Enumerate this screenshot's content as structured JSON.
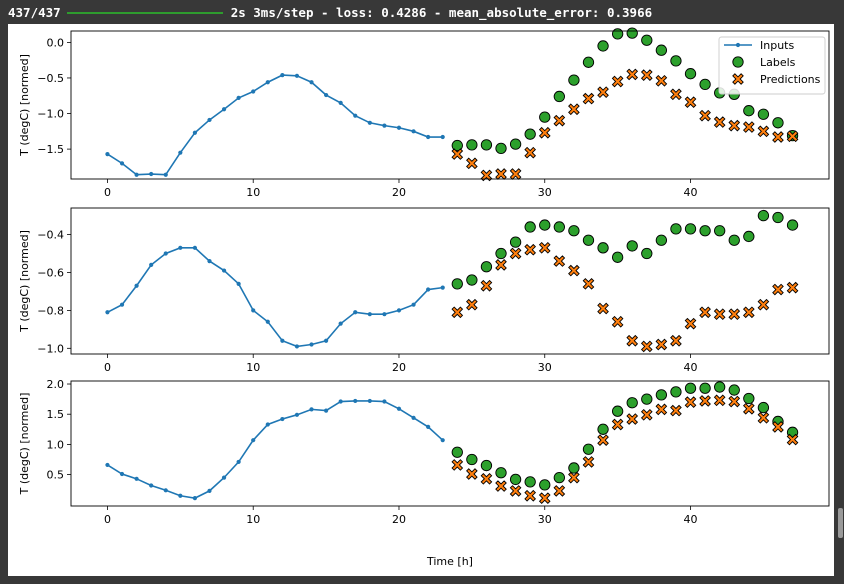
{
  "console": {
    "progress_text": "437/437",
    "progress_fraction": 1.0,
    "status_text": "2s 3ms/step - loss: 0.4286 - mean_absolute_error: 0.3966"
  },
  "colors": {
    "inputs": "#1f77b4",
    "labels": "#2ca02c",
    "predictions": "#ff7f0e",
    "background": "#383838",
    "progress_bar": "#2e9c2e"
  },
  "chart_data": {
    "type": "multi-panel line+scatter",
    "xlabel": "Time [h]",
    "xlim": [
      -2.5,
      49.5
    ],
    "xticks": [
      0,
      10,
      20,
      30,
      40
    ],
    "legend": {
      "placement": "top-right of first panel",
      "entries": [
        "Inputs",
        "Labels",
        "Predictions"
      ]
    },
    "panels": [
      {
        "ylabel": "T (degC) [normed]",
        "ylim": [
          -1.92,
          0.16
        ],
        "yticks": [
          0.0,
          -0.5,
          -1.0,
          -1.5
        ],
        "ytick_labels": [
          "0.0",
          "−0.5",
          "−1.0",
          "−1.5"
        ],
        "inputs": {
          "x": [
            0,
            1,
            2,
            3,
            4,
            5,
            6,
            7,
            8,
            9,
            10,
            11,
            12,
            13,
            14,
            15,
            16,
            17,
            18,
            19,
            20,
            21,
            22,
            23
          ],
          "y": [
            -1.57,
            -1.7,
            -1.86,
            -1.85,
            -1.86,
            -1.55,
            -1.27,
            -1.09,
            -0.94,
            -0.78,
            -0.69,
            -0.56,
            -0.46,
            -0.47,
            -0.56,
            -0.74,
            -0.85,
            -1.03,
            -1.13,
            -1.17,
            -1.2,
            -1.25,
            -1.33,
            -1.33
          ]
        },
        "labels": {
          "x": [
            24,
            25,
            26,
            27,
            28,
            29,
            30,
            31,
            32,
            33,
            34,
            35,
            36,
            37,
            38,
            39,
            40,
            41,
            42,
            43,
            44,
            45,
            46,
            47
          ],
          "y": [
            -1.45,
            -1.44,
            -1.44,
            -1.49,
            -1.43,
            -1.29,
            -1.05,
            -0.76,
            -0.53,
            -0.28,
            -0.05,
            0.12,
            0.13,
            0.03,
            -0.11,
            -0.26,
            -0.44,
            -0.59,
            -0.71,
            -0.73,
            -0.96,
            -1.01,
            -1.13,
            -1.31
          ]
        },
        "predictions": {
          "x": [
            24,
            25,
            26,
            27,
            28,
            29,
            30,
            31,
            32,
            33,
            34,
            35,
            36,
            37,
            38,
            39,
            40,
            41,
            42,
            43,
            44,
            45,
            46,
            47
          ],
          "y": [
            -1.57,
            -1.7,
            -1.87,
            -1.85,
            -1.85,
            -1.55,
            -1.27,
            -1.1,
            -0.94,
            -0.79,
            -0.7,
            -0.55,
            -0.45,
            -0.46,
            -0.54,
            -0.73,
            -0.84,
            -1.03,
            -1.12,
            -1.17,
            -1.19,
            -1.25,
            -1.33,
            -1.32
          ]
        }
      },
      {
        "ylabel": "T (degC) [normed]",
        "ylim": [
          -1.03,
          -0.26
        ],
        "yticks": [
          -0.4,
          -0.6,
          -0.8,
          -1.0
        ],
        "ytick_labels": [
          "−0.4",
          "−0.6",
          "−0.8",
          "−1.0"
        ],
        "inputs": {
          "x": [
            0,
            1,
            2,
            3,
            4,
            5,
            6,
            7,
            8,
            9,
            10,
            11,
            12,
            13,
            14,
            15,
            16,
            17,
            18,
            19,
            20,
            21,
            22,
            23
          ],
          "y": [
            -0.81,
            -0.77,
            -0.67,
            -0.56,
            -0.5,
            -0.47,
            -0.47,
            -0.54,
            -0.59,
            -0.66,
            -0.8,
            -0.86,
            -0.96,
            -0.99,
            -0.98,
            -0.96,
            -0.87,
            -0.81,
            -0.82,
            -0.82,
            -0.8,
            -0.77,
            -0.69,
            -0.68
          ]
        },
        "labels": {
          "x": [
            24,
            25,
            26,
            27,
            28,
            29,
            30,
            31,
            32,
            33,
            34,
            35,
            36,
            37,
            38,
            39,
            40,
            41,
            42,
            43,
            44,
            45,
            46,
            47
          ],
          "y": [
            -0.66,
            -0.64,
            -0.57,
            -0.5,
            -0.44,
            -0.36,
            -0.35,
            -0.36,
            -0.38,
            -0.43,
            -0.47,
            -0.52,
            -0.46,
            -0.5,
            -0.43,
            -0.37,
            -0.37,
            -0.38,
            -0.38,
            -0.43,
            -0.41,
            -0.3,
            -0.31,
            -0.35
          ]
        },
        "predictions": {
          "x": [
            24,
            25,
            26,
            27,
            28,
            29,
            30,
            31,
            32,
            33,
            34,
            35,
            36,
            37,
            38,
            39,
            40,
            41,
            42,
            43,
            44,
            45,
            46,
            47
          ],
          "y": [
            -0.81,
            -0.77,
            -0.67,
            -0.56,
            -0.5,
            -0.48,
            -0.47,
            -0.54,
            -0.59,
            -0.66,
            -0.79,
            -0.86,
            -0.96,
            -0.99,
            -0.98,
            -0.96,
            -0.87,
            -0.81,
            -0.82,
            -0.82,
            -0.81,
            -0.77,
            -0.69,
            -0.68
          ]
        }
      },
      {
        "ylabel": "T (degC) [normed]",
        "ylim": [
          -0.02,
          2.05
        ],
        "yticks": [
          2.0,
          1.5,
          1.0,
          0.5
        ],
        "ytick_labels": [
          "2.0",
          "1.5",
          "1.0",
          "0.5"
        ],
        "inputs": {
          "x": [
            0,
            1,
            2,
            3,
            4,
            5,
            6,
            7,
            8,
            9,
            10,
            11,
            12,
            13,
            14,
            15,
            16,
            17,
            18,
            19,
            20,
            21,
            22,
            23
          ],
          "y": [
            0.66,
            0.51,
            0.43,
            0.32,
            0.24,
            0.15,
            0.11,
            0.23,
            0.45,
            0.71,
            1.07,
            1.33,
            1.42,
            1.49,
            1.58,
            1.56,
            1.71,
            1.72,
            1.72,
            1.71,
            1.59,
            1.44,
            1.29,
            1.07
          ]
        },
        "labels": {
          "x": [
            24,
            25,
            26,
            27,
            28,
            29,
            30,
            31,
            32,
            33,
            34,
            35,
            36,
            37,
            38,
            39,
            40,
            41,
            42,
            43,
            44,
            45,
            46,
            47
          ],
          "y": [
            0.87,
            0.75,
            0.65,
            0.53,
            0.42,
            0.38,
            0.33,
            0.45,
            0.61,
            0.92,
            1.25,
            1.55,
            1.69,
            1.75,
            1.82,
            1.87,
            1.93,
            1.93,
            1.95,
            1.9,
            1.76,
            1.61,
            1.38,
            1.2
          ]
        },
        "predictions": {
          "x": [
            24,
            25,
            26,
            27,
            28,
            29,
            30,
            31,
            32,
            33,
            34,
            35,
            36,
            37,
            38,
            39,
            40,
            41,
            42,
            43,
            44,
            45,
            46,
            47
          ],
          "y": [
            0.66,
            0.51,
            0.43,
            0.31,
            0.23,
            0.15,
            0.11,
            0.23,
            0.45,
            0.71,
            1.07,
            1.33,
            1.42,
            1.49,
            1.58,
            1.56,
            1.7,
            1.72,
            1.73,
            1.71,
            1.59,
            1.44,
            1.29,
            1.08
          ]
        }
      }
    ]
  }
}
